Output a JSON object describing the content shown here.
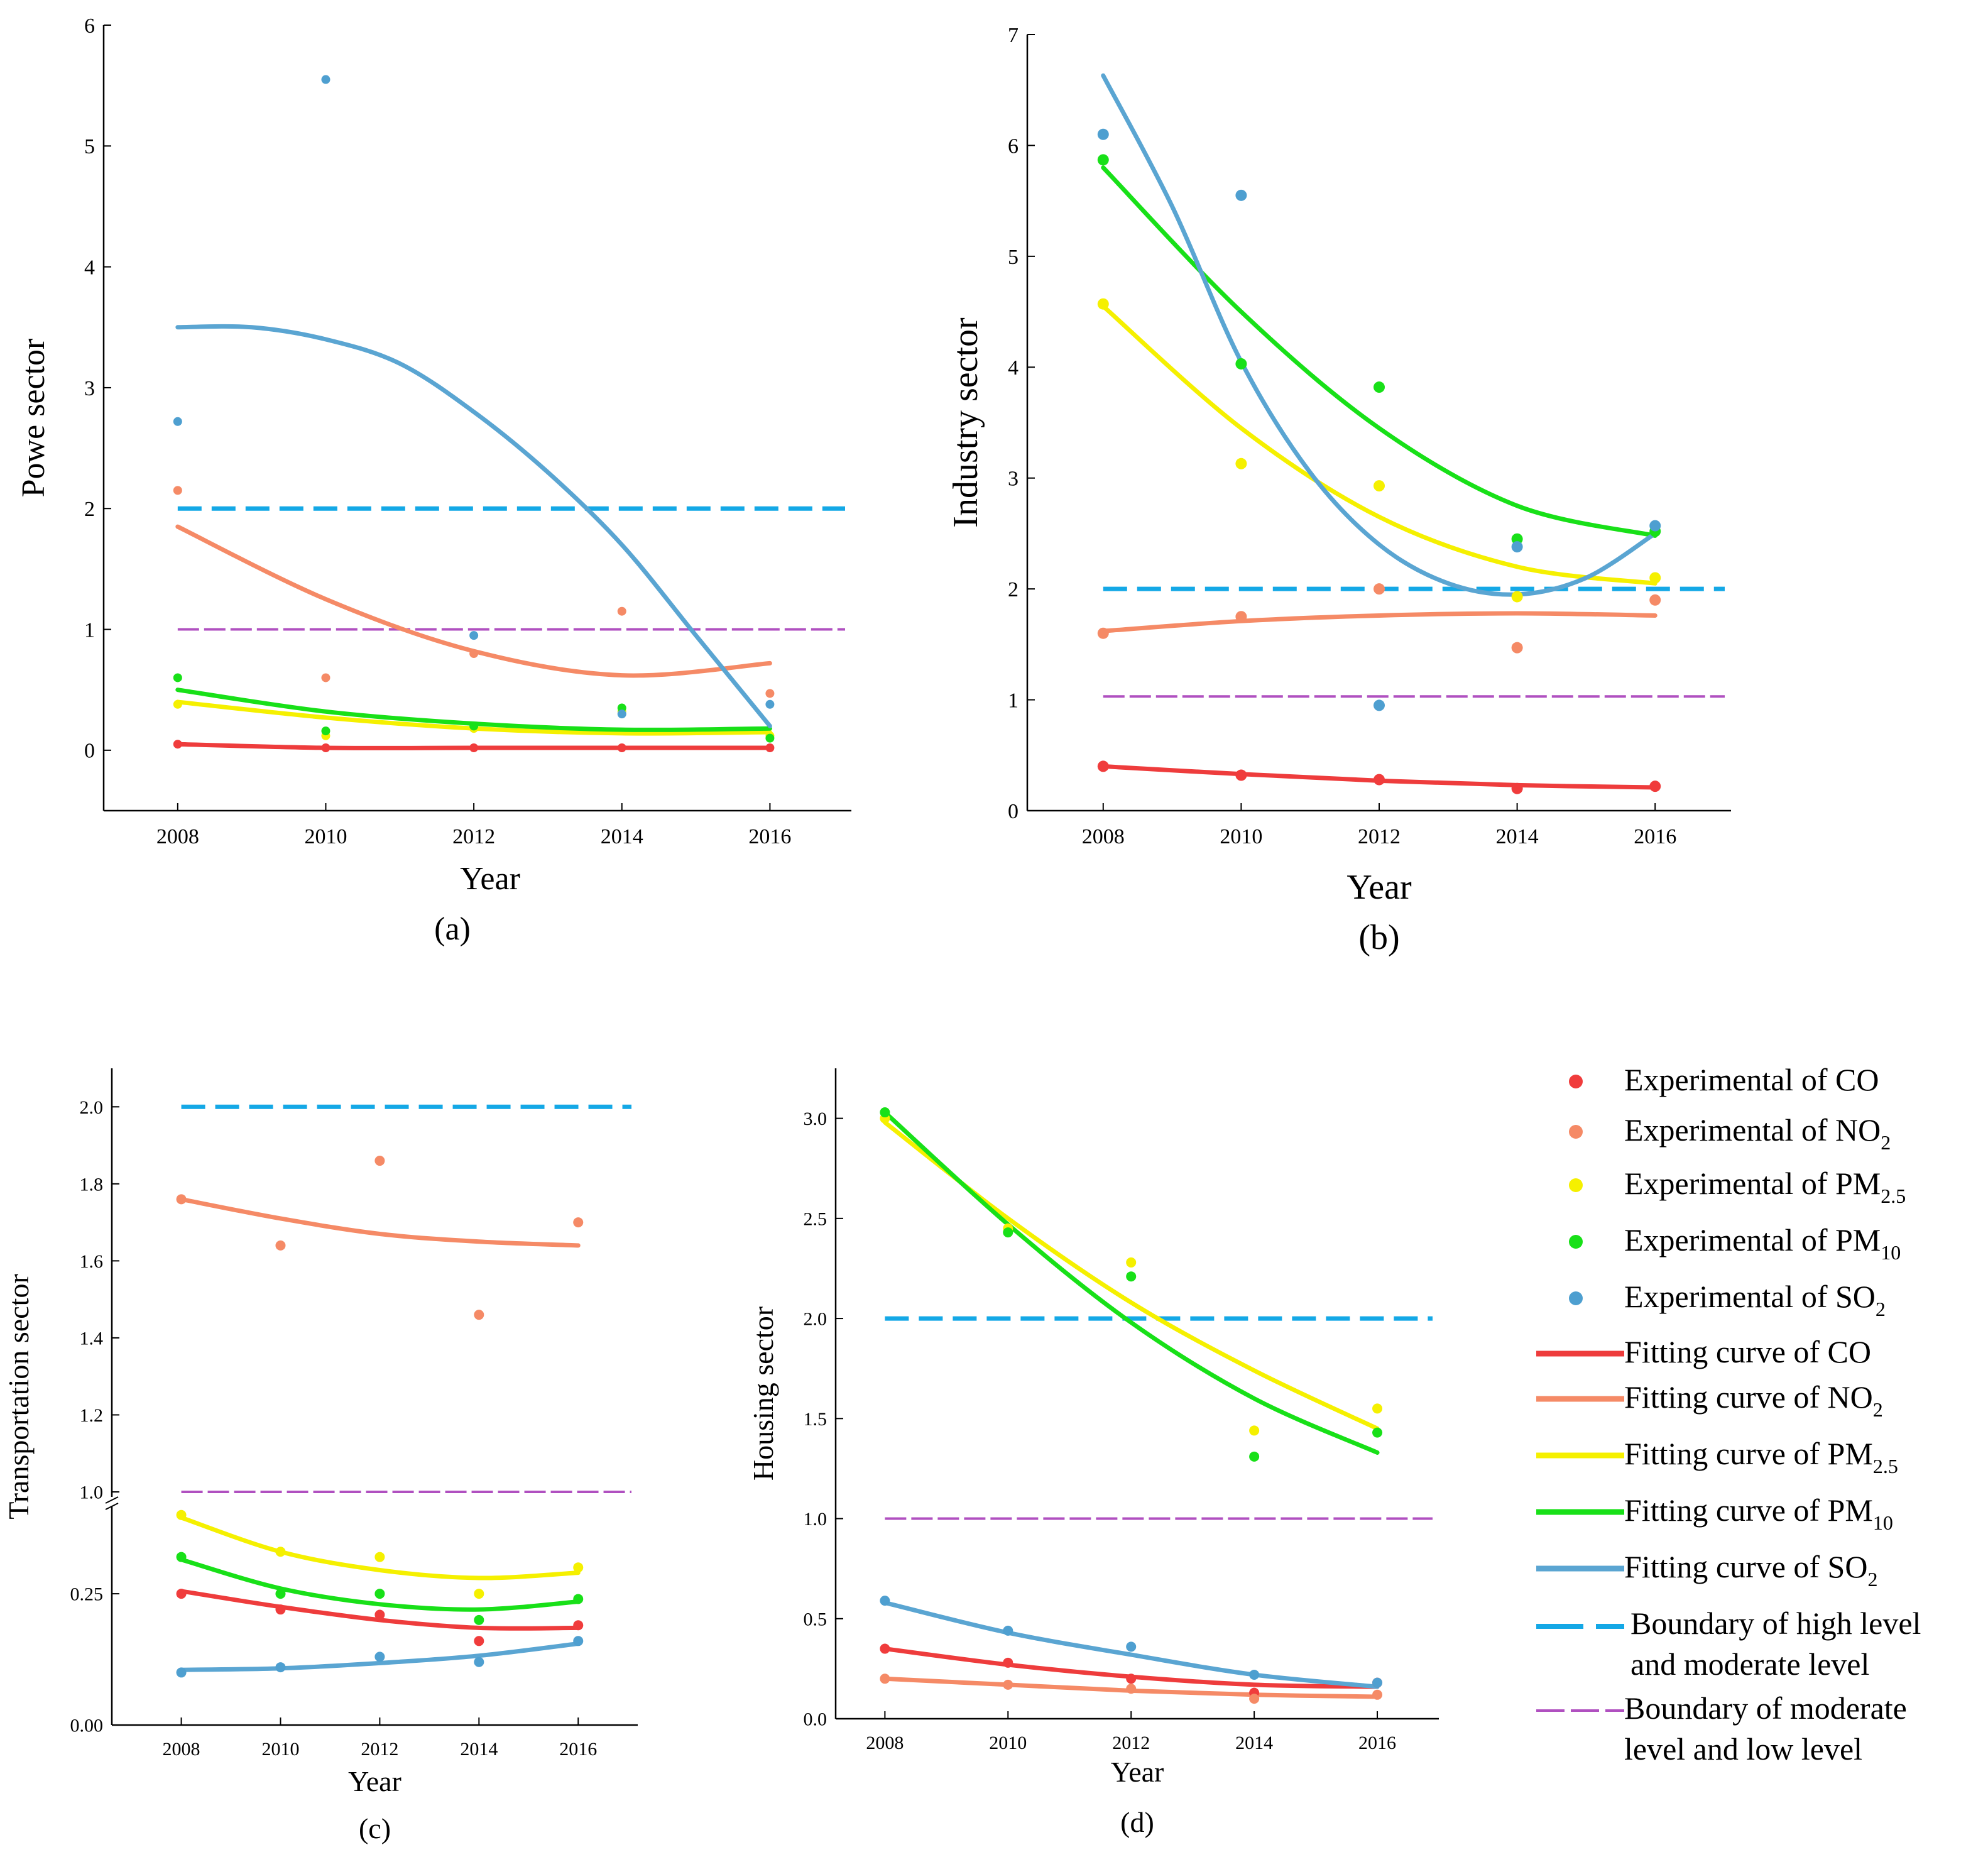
{
  "series_meta": {
    "CO": {
      "label": "CO",
      "sub": "",
      "point_color": "#f03c3c",
      "fit_color": "#ee3c3c"
    },
    "NO2": {
      "label": "NO",
      "sub": "2",
      "point_color": "#f58a66",
      "fit_color": "#f58a66"
    },
    "PM25": {
      "label": "PM",
      "sub": "2.5",
      "point_color": "#f5f000",
      "fit_color": "#f5f000"
    },
    "PM10": {
      "label": "PM",
      "sub": "10",
      "point_color": "#18e018",
      "fit_color": "#18e018"
    },
    "SO2": {
      "label": "SO",
      "sub": "2",
      "point_color": "#4e9fd0",
      "fit_color": "#5aa5d2"
    }
  },
  "boundary_colors": {
    "high_moderate": "#14a8e6",
    "moderate_low": "#b050c0"
  },
  "legend": {
    "experimental_prefix": "Experimental of ",
    "fitting_prefix": "Fitting curve of ",
    "boundary_high_line1": "Boundary of high level",
    "boundary_high_line2": "and moderate level",
    "boundary_low_line1": "Boundary of moderate",
    "boundary_low_line2": "level and low level"
  },
  "chart_data": [
    {
      "id": "a",
      "type": "scatter",
      "panel_label": "(a)",
      "xlabel": "Year",
      "ylabel": "Powe sector",
      "x_ticks": [
        "2008",
        "2010",
        "2012",
        "2014",
        "2016"
      ],
      "y_ticks": [
        "0",
        "1",
        "2",
        "3",
        "4",
        "5",
        "6"
      ],
      "xlim": [
        2007,
        2017.1
      ],
      "ylim": [
        -0.5,
        6
      ],
      "boundaries": {
        "high_moderate": 2,
        "moderate_low": 1
      },
      "series": [
        {
          "key": "CO",
          "points": [
            [
              2008,
              0.05
            ],
            [
              2010,
              0.02
            ],
            [
              2012,
              0.02
            ],
            [
              2014,
              0.02
            ],
            [
              2016,
              0.02
            ]
          ],
          "fit": [
            [
              2008,
              0.05
            ],
            [
              2010,
              0.02
            ],
            [
              2012,
              0.02
            ],
            [
              2014,
              0.02
            ],
            [
              2016,
              0.02
            ]
          ]
        },
        {
          "key": "NO2",
          "points": [
            [
              2008,
              2.15
            ],
            [
              2010,
              0.6
            ],
            [
              2012,
              0.8
            ],
            [
              2014,
              1.15
            ],
            [
              2016,
              0.47
            ]
          ],
          "fit": [
            [
              2008,
              1.85
            ],
            [
              2010,
              1.25
            ],
            [
              2012,
              0.82
            ],
            [
              2014,
              0.62
            ],
            [
              2016,
              0.72
            ]
          ]
        },
        {
          "key": "PM25",
          "points": [
            [
              2008,
              0.38
            ],
            [
              2010,
              0.12
            ],
            [
              2012,
              0.18
            ],
            [
              2014,
              0.32
            ],
            [
              2016,
              0.12
            ]
          ],
          "fit": [
            [
              2008,
              0.4
            ],
            [
              2010,
              0.27
            ],
            [
              2012,
              0.18
            ],
            [
              2014,
              0.14
            ],
            [
              2016,
              0.15
            ]
          ]
        },
        {
          "key": "PM10",
          "points": [
            [
              2008,
              0.6
            ],
            [
              2010,
              0.16
            ],
            [
              2012,
              0.2
            ],
            [
              2014,
              0.35
            ],
            [
              2016,
              0.1
            ]
          ],
          "fit": [
            [
              2008,
              0.5
            ],
            [
              2010,
              0.32
            ],
            [
              2012,
              0.22
            ],
            [
              2014,
              0.17
            ],
            [
              2016,
              0.18
            ]
          ]
        },
        {
          "key": "SO2",
          "points": [
            [
              2008,
              2.72
            ],
            [
              2010,
              5.55
            ],
            [
              2012,
              0.95
            ],
            [
              2014,
              0.3
            ],
            [
              2016,
              0.38
            ]
          ],
          "fit": [
            [
              2008,
              3.5
            ],
            [
              2009,
              3.5
            ],
            [
              2010,
              3.4
            ],
            [
              2011,
              3.2
            ],
            [
              2012,
              2.8
            ],
            [
              2013,
              2.3
            ],
            [
              2014,
              1.7
            ],
            [
              2015,
              0.95
            ],
            [
              2016,
              0.2
            ]
          ]
        }
      ]
    },
    {
      "id": "b",
      "type": "scatter",
      "panel_label": "(b)",
      "xlabel": "Year",
      "ylabel": "Industry sector",
      "x_ticks": [
        "2008",
        "2010",
        "2012",
        "2014",
        "2016"
      ],
      "y_ticks": [
        "0",
        "1",
        "2",
        "3",
        "4",
        "5",
        "6",
        "7"
      ],
      "xlim": [
        2006.9,
        2017.1
      ],
      "ylim": [
        0,
        7
      ],
      "boundaries": {
        "high_moderate": 2,
        "moderate_low": 1.03
      },
      "series": [
        {
          "key": "CO",
          "points": [
            [
              2008,
              0.4
            ],
            [
              2010,
              0.32
            ],
            [
              2012,
              0.28
            ],
            [
              2014,
              0.2
            ],
            [
              2016,
              0.22
            ]
          ],
          "fit": [
            [
              2008,
              0.4
            ],
            [
              2010,
              0.33
            ],
            [
              2012,
              0.27
            ],
            [
              2014,
              0.23
            ],
            [
              2016,
              0.21
            ]
          ]
        },
        {
          "key": "NO2",
          "points": [
            [
              2008,
              1.6
            ],
            [
              2010,
              1.75
            ],
            [
              2012,
              2.0
            ],
            [
              2014,
              1.47
            ],
            [
              2016,
              1.9
            ]
          ],
          "fit": [
            [
              2008,
              1.62
            ],
            [
              2010,
              1.71
            ],
            [
              2012,
              1.76
            ],
            [
              2014,
              1.78
            ],
            [
              2016,
              1.76
            ]
          ]
        },
        {
          "key": "PM25",
          "points": [
            [
              2008,
              4.57
            ],
            [
              2010,
              3.13
            ],
            [
              2012,
              2.93
            ],
            [
              2014,
              1.93
            ],
            [
              2016,
              2.1
            ]
          ],
          "fit": [
            [
              2008,
              4.55
            ],
            [
              2010,
              3.45
            ],
            [
              2012,
              2.65
            ],
            [
              2014,
              2.2
            ],
            [
              2016,
              2.05
            ]
          ]
        },
        {
          "key": "PM10",
          "points": [
            [
              2008,
              5.87
            ],
            [
              2010,
              4.03
            ],
            [
              2012,
              3.82
            ],
            [
              2014,
              2.45
            ],
            [
              2016,
              2.52
            ]
          ],
          "fit": [
            [
              2008,
              5.8
            ],
            [
              2010,
              4.5
            ],
            [
              2012,
              3.45
            ],
            [
              2014,
              2.75
            ],
            [
              2016,
              2.48
            ]
          ]
        },
        {
          "key": "SO2",
          "points": [
            [
              2008,
              6.1
            ],
            [
              2010,
              5.55
            ],
            [
              2012,
              0.95
            ],
            [
              2014,
              2.38
            ],
            [
              2016,
              2.57
            ]
          ],
          "fit": [
            [
              2008,
              6.63
            ],
            [
              2009,
              5.45
            ],
            [
              2010,
              4.05
            ],
            [
              2011,
              3.05
            ],
            [
              2012,
              2.4
            ],
            [
              2013,
              2.05
            ],
            [
              2014,
              1.95
            ],
            [
              2015,
              2.1
            ],
            [
              2016,
              2.5
            ]
          ]
        }
      ]
    },
    {
      "id": "c",
      "type": "scatter",
      "panel_label": "(c)",
      "xlabel": "Year",
      "ylabel": "Transportation sector",
      "x_ticks": [
        "2008",
        "2010",
        "2012",
        "2014",
        "2016"
      ],
      "y_ticks": [
        "0.00",
        "0.25",
        "1.0",
        "1.2",
        "1.4",
        "1.6",
        "1.8",
        "2.0"
      ],
      "axis_break": {
        "lower_range": [
          0,
          0.42
        ],
        "upper_range": [
          1.0,
          2.1
        ]
      },
      "xlim": [
        2006.6,
        2017.2
      ],
      "ylim": [
        0,
        2.1
      ],
      "boundaries": {
        "high_moderate": 2,
        "moderate_low": 1.0
      },
      "series": [
        {
          "key": "CO",
          "points": [
            [
              2008,
              0.25
            ],
            [
              2010,
              0.22
            ],
            [
              2012,
              0.21
            ],
            [
              2014,
              0.16
            ],
            [
              2016,
              0.19
            ]
          ],
          "fit": [
            [
              2008,
              0.255
            ],
            [
              2010,
              0.225
            ],
            [
              2012,
              0.2
            ],
            [
              2014,
              0.185
            ],
            [
              2016,
              0.185
            ]
          ]
        },
        {
          "key": "NO2",
          "points": [
            [
              2008,
              1.76
            ],
            [
              2010,
              1.64
            ],
            [
              2012,
              1.86
            ],
            [
              2014,
              1.46
            ],
            [
              2016,
              1.7
            ]
          ],
          "fit": [
            [
              2008,
              1.76
            ],
            [
              2010,
              1.71
            ],
            [
              2012,
              1.67
            ],
            [
              2014,
              1.65
            ],
            [
              2016,
              1.64
            ]
          ]
        },
        {
          "key": "PM25",
          "points": [
            [
              2008,
              0.4
            ],
            [
              2010,
              0.33
            ],
            [
              2012,
              0.32
            ],
            [
              2014,
              0.25
            ],
            [
              2016,
              0.3
            ]
          ],
          "fit": [
            [
              2008,
              0.395
            ],
            [
              2010,
              0.33
            ],
            [
              2012,
              0.295
            ],
            [
              2014,
              0.28
            ],
            [
              2016,
              0.29
            ]
          ]
        },
        {
          "key": "PM10",
          "points": [
            [
              2008,
              0.32
            ],
            [
              2010,
              0.25
            ],
            [
              2012,
              0.25
            ],
            [
              2014,
              0.2
            ],
            [
              2016,
              0.24
            ]
          ],
          "fit": [
            [
              2008,
              0.315
            ],
            [
              2010,
              0.26
            ],
            [
              2012,
              0.23
            ],
            [
              2014,
              0.22
            ],
            [
              2016,
              0.235
            ]
          ]
        },
        {
          "key": "SO2",
          "points": [
            [
              2008,
              0.1
            ],
            [
              2010,
              0.11
            ],
            [
              2012,
              0.13
            ],
            [
              2014,
              0.12
            ],
            [
              2016,
              0.16
            ]
          ],
          "fit": [
            [
              2008,
              0.105
            ],
            [
              2010,
              0.108
            ],
            [
              2012,
              0.118
            ],
            [
              2014,
              0.132
            ],
            [
              2016,
              0.155
            ]
          ]
        }
      ]
    },
    {
      "id": "d",
      "type": "scatter",
      "panel_label": "(d)",
      "xlabel": "Year",
      "ylabel": "Housing sector",
      "x_ticks": [
        "2008",
        "2010",
        "2012",
        "2014",
        "2016"
      ],
      "y_ticks": [
        "0.0",
        "0.5",
        "1.0",
        "1.5",
        "2.0",
        "2.5",
        "3.0"
      ],
      "xlim": [
        2007.2,
        2017.0
      ],
      "ylim": [
        0,
        3.25
      ],
      "boundaries": {
        "high_moderate": 2,
        "moderate_low": 1.0
      },
      "series": [
        {
          "key": "CO",
          "points": [
            [
              2008,
              0.35
            ],
            [
              2010,
              0.28
            ],
            [
              2012,
              0.2
            ],
            [
              2014,
              0.13
            ],
            [
              2016,
              0.18
            ]
          ],
          "fit": [
            [
              2008,
              0.35
            ],
            [
              2010,
              0.27
            ],
            [
              2012,
              0.21
            ],
            [
              2014,
              0.17
            ],
            [
              2016,
              0.16
            ]
          ]
        },
        {
          "key": "NO2",
          "points": [
            [
              2008,
              0.2
            ],
            [
              2010,
              0.17
            ],
            [
              2012,
              0.15
            ],
            [
              2014,
              0.1
            ],
            [
              2016,
              0.12
            ]
          ],
          "fit": [
            [
              2008,
              0.2
            ],
            [
              2010,
              0.17
            ],
            [
              2012,
              0.14
            ],
            [
              2014,
              0.12
            ],
            [
              2016,
              0.11
            ]
          ]
        },
        {
          "key": "PM25",
          "points": [
            [
              2008,
              3.0
            ],
            [
              2010,
              2.45
            ],
            [
              2012,
              2.28
            ],
            [
              2014,
              1.44
            ],
            [
              2016,
              1.55
            ]
          ],
          "fit": [
            [
              2008,
              2.98
            ],
            [
              2010,
              2.5
            ],
            [
              2012,
              2.08
            ],
            [
              2014,
              1.74
            ],
            [
              2016,
              1.45
            ]
          ]
        },
        {
          "key": "PM10",
          "points": [
            [
              2008,
              3.03
            ],
            [
              2010,
              2.43
            ],
            [
              2012,
              2.21
            ],
            [
              2014,
              1.31
            ],
            [
              2016,
              1.43
            ]
          ],
          "fit": [
            [
              2008,
              3.03
            ],
            [
              2010,
              2.47
            ],
            [
              2012,
              1.98
            ],
            [
              2014,
              1.6
            ],
            [
              2016,
              1.33
            ]
          ]
        },
        {
          "key": "SO2",
          "points": [
            [
              2008,
              0.59
            ],
            [
              2010,
              0.44
            ],
            [
              2012,
              0.36
            ],
            [
              2014,
              0.22
            ],
            [
              2016,
              0.18
            ]
          ],
          "fit": [
            [
              2008,
              0.58
            ],
            [
              2010,
              0.43
            ],
            [
              2012,
              0.32
            ],
            [
              2014,
              0.22
            ],
            [
              2016,
              0.16
            ]
          ]
        }
      ]
    }
  ]
}
